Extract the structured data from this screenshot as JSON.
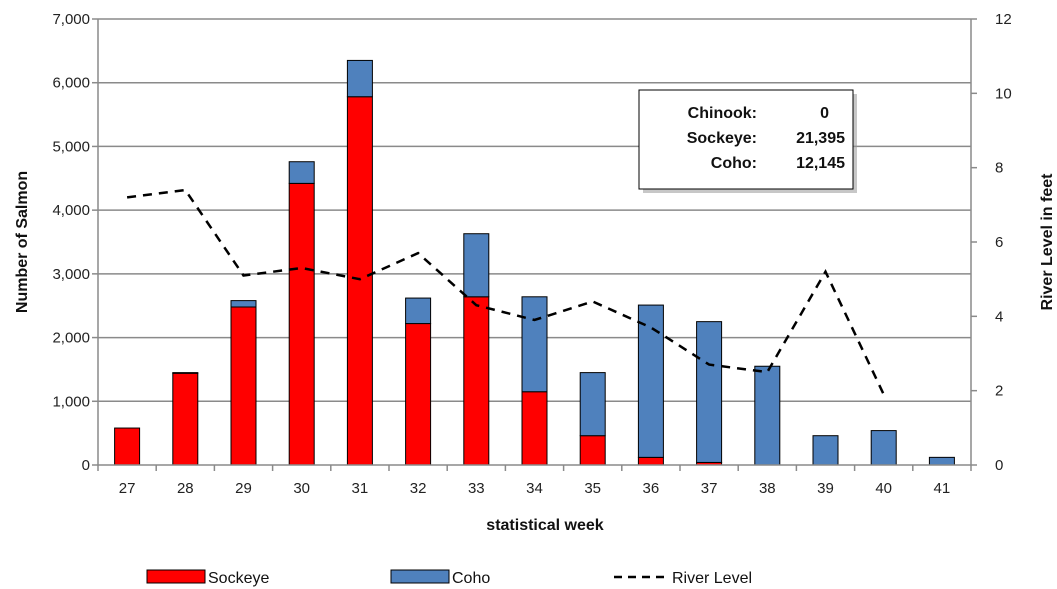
{
  "chart_data": {
    "type": "bar",
    "stacked": true,
    "xlabel": "statistical week",
    "ylabel": "Number of Salmon",
    "y2label": "River Level in feet",
    "ylim": [
      0,
      7000
    ],
    "y2lim": [
      0,
      12
    ],
    "yticks": [
      "0",
      "1,000",
      "2,000",
      "3,000",
      "4,000",
      "5,000",
      "6,000",
      "7,000"
    ],
    "y2ticks": [
      "0",
      "2",
      "4",
      "6",
      "8",
      "10",
      "12"
    ],
    "grid": true,
    "legend_position": "bottom",
    "categories": [
      "27",
      "28",
      "29",
      "30",
      "31",
      "32",
      "33",
      "34",
      "35",
      "36",
      "37",
      "38",
      "39",
      "40",
      "41"
    ],
    "series": [
      {
        "name": "Sockeye",
        "kind": "bar",
        "axis": "left",
        "color": "#ff0000",
        "values": [
          580,
          1440,
          2480,
          4420,
          5780,
          2220,
          2640,
          1150,
          460,
          120,
          40,
          0,
          0,
          0,
          0
        ]
      },
      {
        "name": "Coho",
        "kind": "bar",
        "axis": "left",
        "color": "#4f81bd",
        "values": [
          0,
          10,
          100,
          340,
          570,
          400,
          990,
          1490,
          990,
          2390,
          2210,
          1550,
          460,
          540,
          120
        ]
      },
      {
        "name": "River Level",
        "kind": "line",
        "axis": "right",
        "color": "#000000",
        "dash": true,
        "values": [
          7.2,
          7.4,
          5.1,
          5.3,
          5.0,
          5.7,
          4.3,
          3.9,
          4.4,
          3.7,
          2.7,
          2.5,
          5.2,
          1.9,
          null
        ]
      }
    ]
  },
  "summary_box": {
    "rows": [
      {
        "label": "Chinook:",
        "value": "0"
      },
      {
        "label": "Sockeye:",
        "value": "21,395"
      },
      {
        "label": "Coho:",
        "value": "12,145"
      }
    ]
  },
  "legend": {
    "items": [
      {
        "label": "Sockeye"
      },
      {
        "label": "Coho"
      },
      {
        "label": "River Level"
      }
    ]
  }
}
